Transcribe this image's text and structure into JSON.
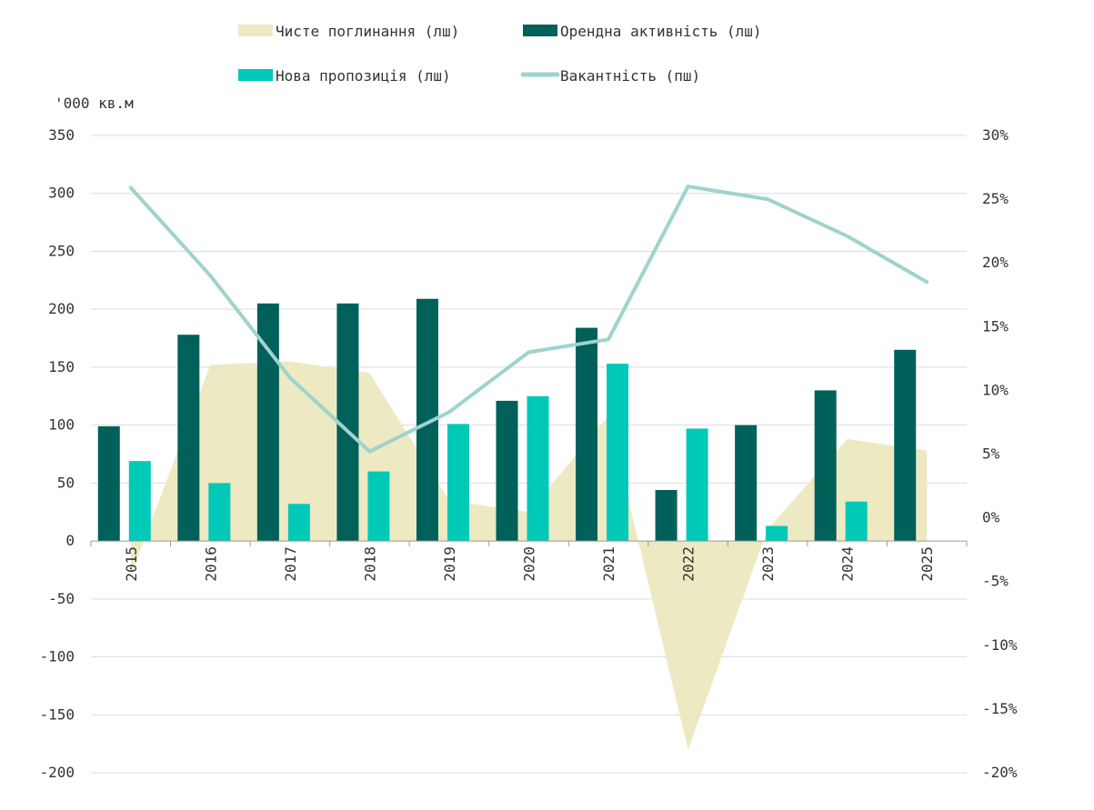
{
  "chart_data": {
    "type": "bar",
    "title": "",
    "ylabel": "'000 кв.м",
    "categories": [
      "2015",
      "2016",
      "2017",
      "2018",
      "2019",
      "2020",
      "2021",
      "2022",
      "2023",
      "2024",
      "2025"
    ],
    "ylim": [
      -200,
      350
    ],
    "yticks": [
      350,
      300,
      250,
      200,
      150,
      100,
      50,
      0,
      -50,
      -100,
      -150,
      -200
    ],
    "y2lim": [
      -0.2,
      0.3
    ],
    "y2ticks": [
      "30%",
      "25%",
      "20%",
      "15%",
      "10%",
      "5%",
      "0%",
      "-5%",
      "-10%",
      "-15%",
      "-20%"
    ],
    "y2tick_values": [
      0.3,
      0.25,
      0.2,
      0.15,
      0.1,
      0.05,
      0.0,
      -0.05,
      -0.1,
      -0.15,
      -0.2
    ],
    "legend_position": "top",
    "series": [
      {
        "name": "Чисте поглинання (лш)",
        "type": "area",
        "axis": "left",
        "color": "#ede9c3",
        "values": [
          -30,
          152,
          155,
          145,
          35,
          25,
          108,
          -180,
          10,
          88,
          78
        ]
      },
      {
        "name": "Орендна активність (лш)",
        "type": "bar",
        "axis": "left",
        "color": "#00605a",
        "values": [
          99,
          178,
          205,
          205,
          209,
          121,
          184,
          44,
          100,
          130,
          165
        ]
      },
      {
        "name": "Нова пропозиція (лш)",
        "type": "bar",
        "axis": "left",
        "color": "#00c9b7",
        "values": [
          69,
          50,
          32,
          60,
          101,
          125,
          153,
          97,
          13,
          34,
          0
        ]
      },
      {
        "name": "Вакантність (пш)",
        "type": "line",
        "axis": "right",
        "color": "#9fd3cd",
        "values": [
          0.259,
          0.19,
          0.11,
          0.052,
          0.083,
          0.13,
          0.14,
          0.26,
          0.25,
          0.221,
          0.185
        ]
      }
    ]
  },
  "colors": {
    "grid": "#dcdcdc",
    "axis": "#999999",
    "text": "#333333"
  }
}
